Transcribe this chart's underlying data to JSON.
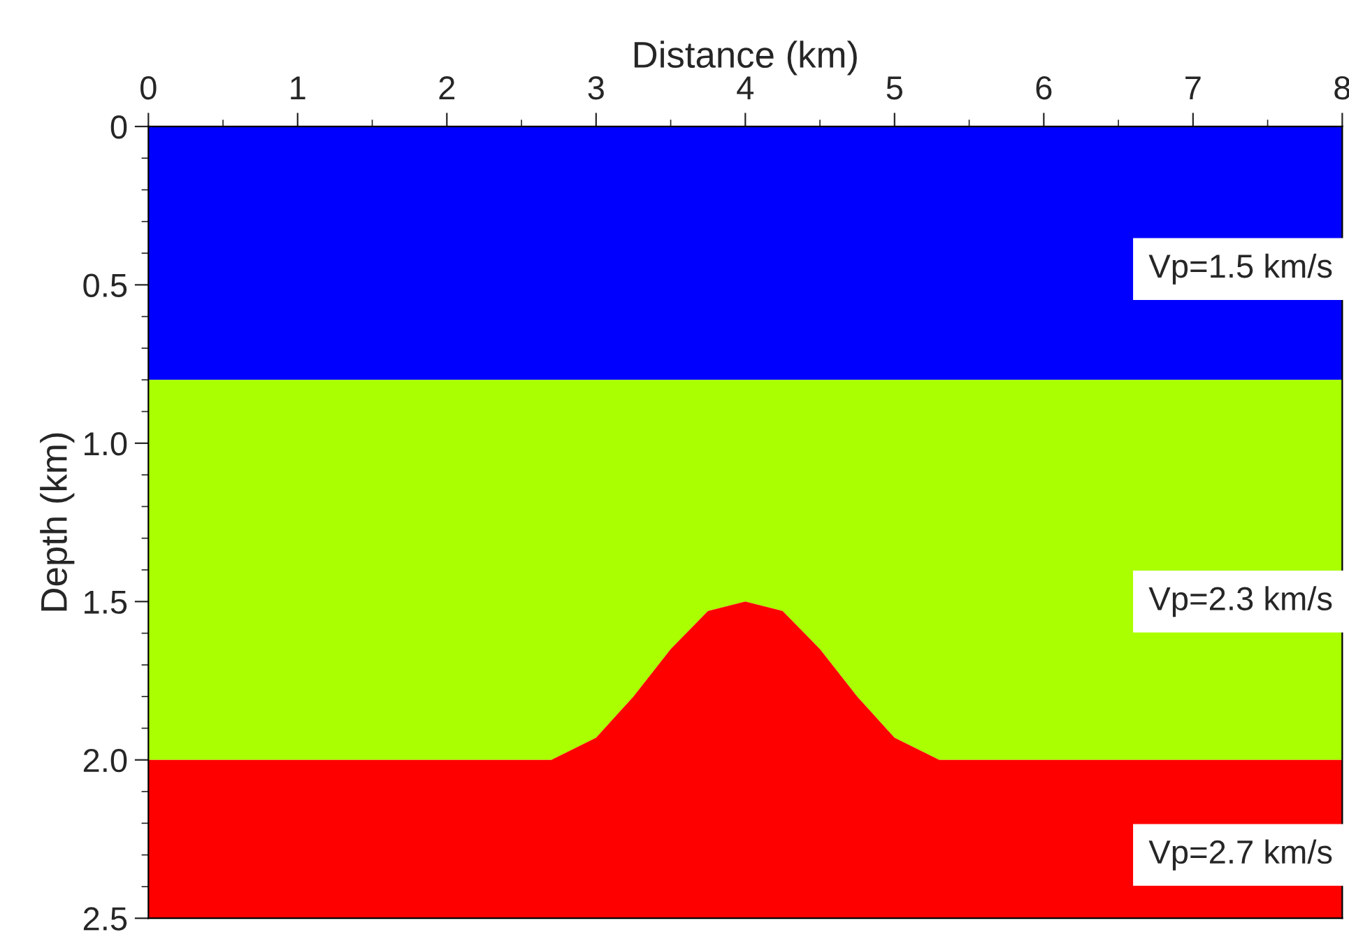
{
  "chart_data": {
    "type": "area",
    "stacked": true,
    "xlabel": "Distance (km)",
    "ylabel": "Depth (km)",
    "x": [
      0,
      2.7,
      3.0,
      3.25,
      3.5,
      3.75,
      4.0,
      4.25,
      4.5,
      4.75,
      5.0,
      5.3,
      8
    ],
    "series": [
      {
        "color": "#0000ff",
        "values": [
          0.8,
          0.8,
          0.8,
          0.8,
          0.8,
          0.8,
          0.8,
          0.8,
          0.8,
          0.8,
          0.8,
          0.8,
          0.8
        ]
      },
      {
        "color": "#aaff00",
        "values": [
          1.2,
          1.2,
          1.13,
          1.0,
          0.85,
          0.73,
          0.7,
          0.73,
          0.85,
          1.0,
          1.13,
          1.2,
          1.2
        ]
      },
      {
        "color": "#ff0000",
        "values": [
          0.5,
          0.5,
          0.57,
          0.7,
          0.85,
          0.97,
          1.0,
          0.97,
          0.85,
          0.7,
          0.57,
          0.5,
          0.5
        ]
      }
    ],
    "xlim": [
      0,
      8
    ],
    "ylim": [
      2.5,
      0
    ],
    "xticks": [
      0,
      1,
      2,
      3,
      4,
      5,
      6,
      7,
      8
    ],
    "yticks": [
      0,
      0.5,
      {
        "value": 1,
        "label": "1.0"
      },
      {
        "value": 1.5,
        "label": "1.5"
      },
      {
        "value": 2,
        "label": "2.0"
      },
      2.5
    ],
    "annotations": [
      "Vp=1.5 km/s",
      "Vp=2.3 km/s",
      "Vp=2.7 km/s"
    ],
    "grid": false,
    "legend": false
  }
}
